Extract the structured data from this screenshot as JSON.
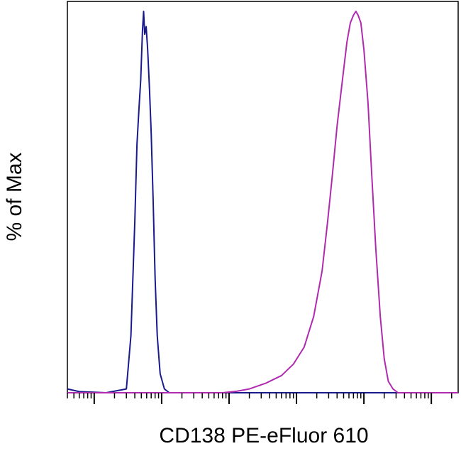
{
  "chart_data": {
    "type": "line",
    "title": "",
    "xlabel": "CD138 PE-eFluor 610",
    "ylabel": "% of Max",
    "x_scale": "log",
    "xlim": [
      0.4,
      250000
    ],
    "ylim": [
      0,
      100
    ],
    "grid": false,
    "legend": "none",
    "x_major_ticks": [
      1,
      10,
      100,
      1000,
      10000,
      100000
    ],
    "series": [
      {
        "color": "#1a1a8c",
        "points": [
          [
            0.4,
            1
          ],
          [
            0.6,
            0.3
          ],
          [
            1.5,
            0
          ],
          [
            3.0,
            1
          ],
          [
            3.5,
            15
          ],
          [
            4.0,
            45
          ],
          [
            4.3,
            65
          ],
          [
            4.6,
            74
          ],
          [
            4.9,
            82
          ],
          [
            5.2,
            95
          ],
          [
            5.4,
            100
          ],
          [
            5.6,
            94
          ],
          [
            5.9,
            96
          ],
          [
            6.2,
            90
          ],
          [
            6.6,
            80
          ],
          [
            7.0,
            68
          ],
          [
            7.5,
            50
          ],
          [
            8.0,
            30
          ],
          [
            8.6,
            15
          ],
          [
            9.5,
            5
          ],
          [
            11,
            1
          ],
          [
            13,
            0
          ],
          [
            20,
            0
          ],
          [
            250000,
            0
          ]
        ]
      },
      {
        "color": "#b02ab0",
        "points": [
          [
            0.4,
            0
          ],
          [
            80,
            0
          ],
          [
            130,
            0.4
          ],
          [
            200,
            1
          ],
          [
            350,
            2.5
          ],
          [
            600,
            4.5
          ],
          [
            900,
            7.5
          ],
          [
            1300,
            12
          ],
          [
            1800,
            20
          ],
          [
            2400,
            32
          ],
          [
            2900,
            45
          ],
          [
            3400,
            57
          ],
          [
            4000,
            70
          ],
          [
            4800,
            82
          ],
          [
            5600,
            92
          ],
          [
            6300,
            97
          ],
          [
            7000,
            99
          ],
          [
            7600,
            100
          ],
          [
            8200,
            99
          ],
          [
            9000,
            97
          ],
          [
            10000,
            90
          ],
          [
            11500,
            76
          ],
          [
            13000,
            58
          ],
          [
            15000,
            38
          ],
          [
            17500,
            20
          ],
          [
            20000,
            9
          ],
          [
            23000,
            3
          ],
          [
            27000,
            1
          ],
          [
            32000,
            0
          ],
          [
            250000,
            0
          ]
        ]
      }
    ]
  }
}
